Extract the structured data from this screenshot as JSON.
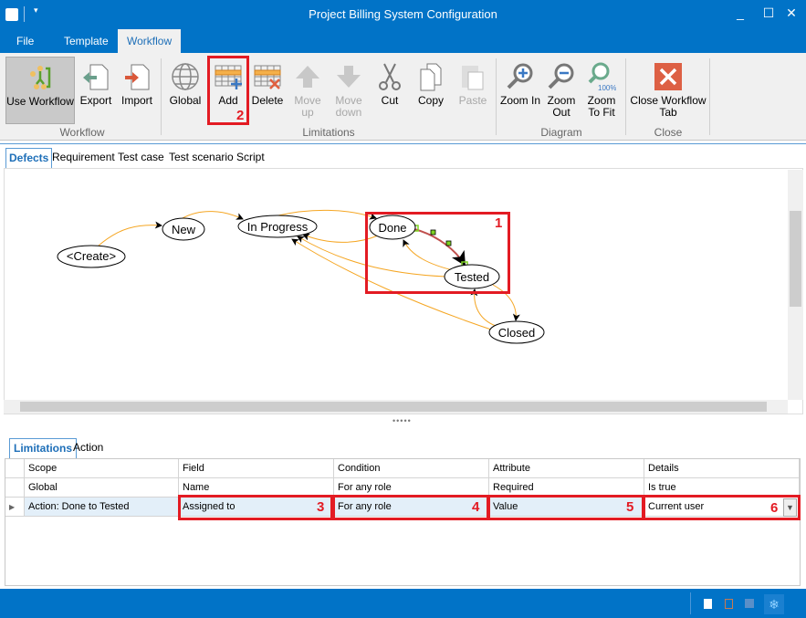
{
  "window": {
    "title": "Project Billing System Configuration",
    "minimize": "_",
    "maximize": "☐",
    "close": "✕"
  },
  "menu_tabs": [
    "File",
    "Template",
    "Workflow"
  ],
  "ribbon": {
    "buttons": {
      "use_workflow": "Use Workflow",
      "export": "Export",
      "import": "Import",
      "global": "Global",
      "add": "Add",
      "delete": "Delete",
      "move_up_1": "Move",
      "move_up_2": "up",
      "move_down_1": "Move",
      "move_down_2": "down",
      "cut": "Cut",
      "copy": "Copy",
      "paste": "Paste",
      "zoom_in": "Zoom In",
      "zoom_out_1": "Zoom",
      "zoom_out_2": "Out",
      "zoom_fit_1": "Zoom",
      "zoom_fit_2": "To Fit",
      "zoom_fit_badge": "100%",
      "close_tab_1": "Close Workflow",
      "close_tab_2": "Tab"
    },
    "groups": {
      "workflow": "Workflow",
      "limitations": "Limitations",
      "diagram": "Diagram",
      "close": "Close"
    }
  },
  "doc_tabs": [
    "Defects",
    "Requirement",
    "Test case",
    "Test scenario",
    "Script"
  ],
  "diagram": {
    "nodes": [
      "<Create>",
      "New",
      "In Progress",
      "Done",
      "Tested",
      "Closed"
    ],
    "edge_color": "#f5a623",
    "selected_edge_color": "#c0504d"
  },
  "annotations": [
    "1",
    "2",
    "3",
    "4",
    "5",
    "6"
  ],
  "bottom_tabs": [
    "Limitations",
    "Action"
  ],
  "grid": {
    "columns": [
      "Scope",
      "Field",
      "Condition",
      "Attribute",
      "Details"
    ],
    "rows": [
      [
        "Global",
        "Name",
        "For any role",
        "Required",
        "Is true"
      ],
      [
        "Action: Done to Tested",
        "Assigned to",
        "For any role",
        "Value",
        "Current user"
      ]
    ]
  },
  "colors": {
    "title_bar": "#0173c7",
    "highlight": "#e31b23"
  }
}
